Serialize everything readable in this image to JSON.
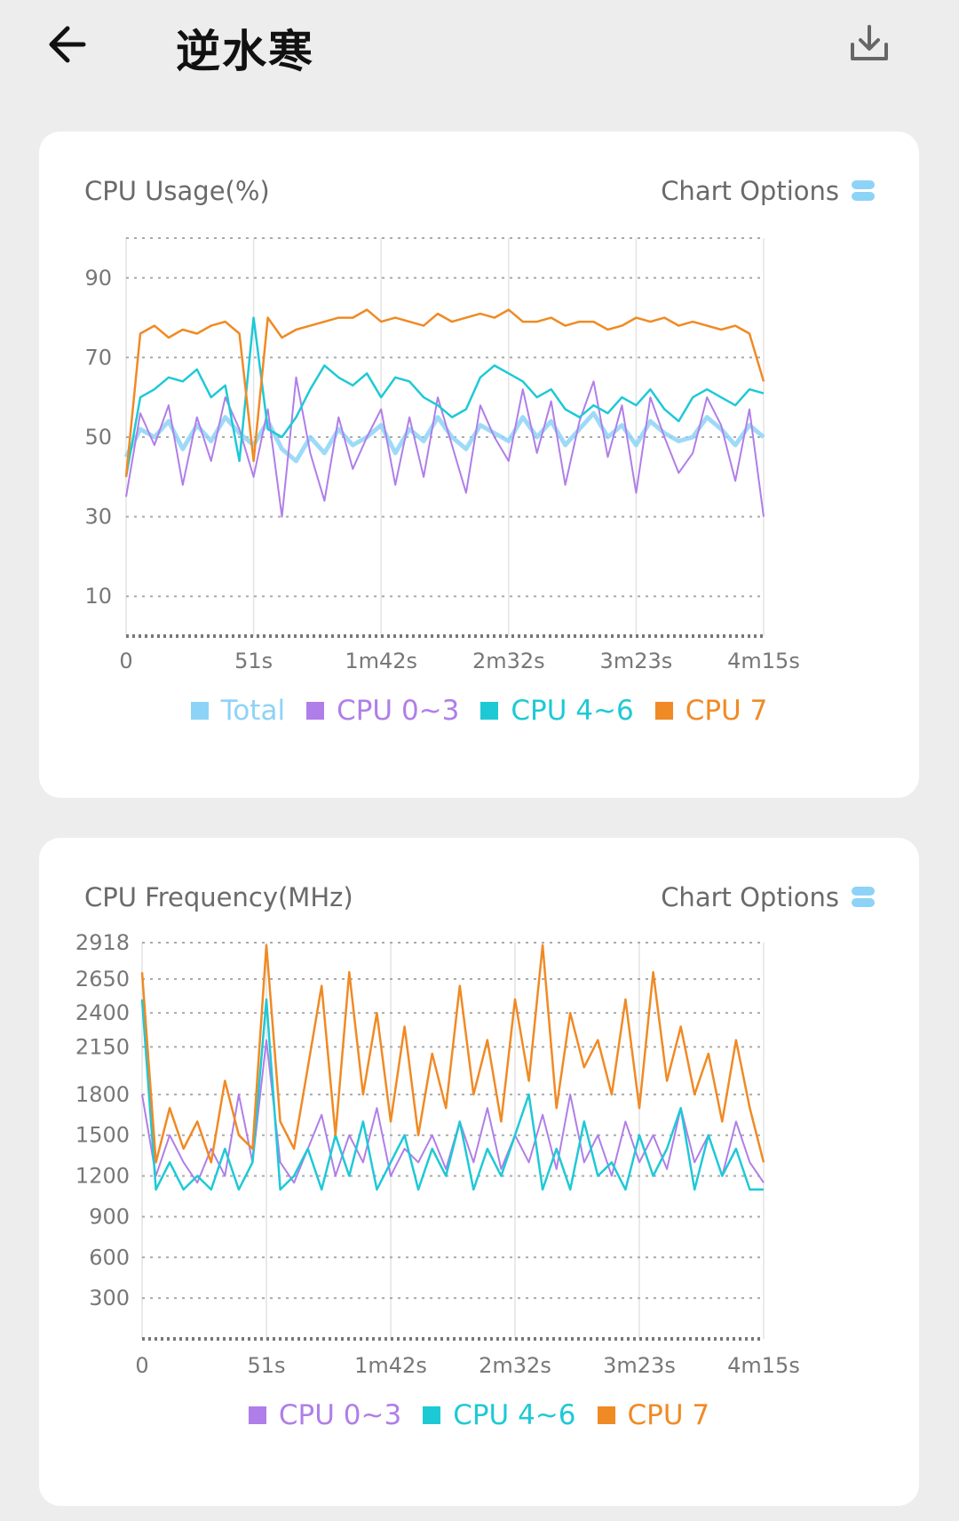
{
  "header": {
    "title": "逆水寒",
    "back_icon": "arrow-left-icon",
    "download_icon": "download-icon"
  },
  "colors": {
    "total": "#8dd3f7",
    "cpu03": "#b07ee8",
    "cpu46": "#1ec9d6",
    "cpu7": "#f08a24"
  },
  "usage_card": {
    "title": "CPU Usage(%)",
    "options_label": "Chart Options",
    "legend": [
      {
        "label": "Total",
        "series": "total"
      },
      {
        "label": "CPU 0~3",
        "series": "cpu03"
      },
      {
        "label": "CPU 4~6",
        "series": "cpu46"
      },
      {
        "label": "CPU 7",
        "series": "cpu7"
      }
    ]
  },
  "freq_card": {
    "title": "CPU Frequency(MHz)",
    "options_label": "Chart Options",
    "legend": [
      {
        "label": "CPU 0~3",
        "series": "cpu03"
      },
      {
        "label": "CPU 4~6",
        "series": "cpu46"
      },
      {
        "label": "CPU 7",
        "series": "cpu7"
      }
    ]
  },
  "chart_data": [
    {
      "type": "line",
      "title": "CPU Usage(%)",
      "xlabel": "",
      "ylabel": "",
      "x_ticks": [
        "0",
        "51s",
        "1m42s",
        "2m32s",
        "3m23s",
        "4m15s"
      ],
      "x_range_seconds": [
        0,
        255
      ],
      "y_ticks": [
        10,
        30,
        50,
        70,
        90
      ],
      "ylim": [
        0,
        100
      ],
      "series": [
        {
          "name": "Total",
          "key": "total",
          "values": [
            45,
            52,
            50,
            54,
            47,
            53,
            49,
            55,
            51,
            48,
            54,
            47,
            44,
            50,
            46,
            52,
            48,
            50,
            53,
            46,
            52,
            49,
            55,
            50,
            47,
            53,
            51,
            49,
            55,
            50,
            54,
            48,
            52,
            56,
            50,
            53,
            48,
            54,
            51,
            49,
            50,
            55,
            52,
            48,
            53,
            50
          ]
        },
        {
          "name": "CPU 0~3",
          "key": "cpu03",
          "values": [
            35,
            56,
            48,
            58,
            38,
            55,
            44,
            60,
            52,
            40,
            57,
            30,
            65,
            46,
            34,
            55,
            42,
            50,
            57,
            38,
            55,
            40,
            60,
            48,
            36,
            58,
            50,
            44,
            62,
            46,
            59,
            38,
            54,
            64,
            45,
            58,
            36,
            60,
            50,
            41,
            46,
            60,
            53,
            39,
            57,
            30
          ]
        },
        {
          "name": "CPU 4~6",
          "key": "cpu46",
          "values": [
            40,
            60,
            62,
            65,
            64,
            67,
            60,
            63,
            44,
            80,
            52,
            50,
            55,
            62,
            68,
            65,
            63,
            66,
            60,
            65,
            64,
            60,
            58,
            55,
            57,
            65,
            68,
            66,
            64,
            60,
            62,
            57,
            55,
            58,
            56,
            60,
            58,
            62,
            57,
            54,
            60,
            62,
            60,
            58,
            62,
            61
          ]
        },
        {
          "name": "CPU 7",
          "key": "cpu7",
          "values": [
            40,
            76,
            78,
            75,
            77,
            76,
            78,
            79,
            76,
            44,
            80,
            75,
            77,
            78,
            79,
            80,
            80,
            82,
            79,
            80,
            79,
            78,
            81,
            79,
            80,
            81,
            80,
            82,
            79,
            79,
            80,
            78,
            79,
            79,
            77,
            78,
            80,
            79,
            80,
            78,
            79,
            78,
            77,
            78,
            76,
            64
          ]
        }
      ]
    },
    {
      "type": "line",
      "title": "CPU Frequency(MHz)",
      "xlabel": "",
      "ylabel": "",
      "x_ticks": [
        "0",
        "51s",
        "1m42s",
        "2m32s",
        "3m23s",
        "4m15s"
      ],
      "x_range_seconds": [
        0,
        255
      ],
      "y_ticks": [
        300,
        600,
        900,
        1200,
        1500,
        1800,
        2150,
        2400,
        2650,
        2918
      ],
      "ylim": [
        0,
        2918
      ],
      "series": [
        {
          "name": "CPU 0~3",
          "key": "cpu03",
          "values": [
            1800,
            1200,
            1500,
            1300,
            1150,
            1400,
            1200,
            1800,
            1300,
            2200,
            1300,
            1150,
            1400,
            1650,
            1200,
            1500,
            1300,
            1700,
            1200,
            1400,
            1300,
            1500,
            1250,
            1600,
            1300,
            1700,
            1250,
            1500,
            1300,
            1650,
            1250,
            1800,
            1300,
            1500,
            1200,
            1600,
            1300,
            1500,
            1250,
            1700,
            1300,
            1500,
            1200,
            1600,
            1300,
            1150
          ]
        },
        {
          "name": "CPU 4~6",
          "key": "cpu46",
          "values": [
            2500,
            1100,
            1300,
            1100,
            1200,
            1100,
            1400,
            1100,
            1300,
            2500,
            1100,
            1200,
            1400,
            1100,
            1500,
            1200,
            1600,
            1100,
            1300,
            1500,
            1100,
            1400,
            1200,
            1600,
            1100,
            1400,
            1200,
            1500,
            1800,
            1100,
            1400,
            1100,
            1600,
            1200,
            1300,
            1100,
            1500,
            1200,
            1400,
            1700,
            1100,
            1500,
            1200,
            1400,
            1100,
            1100
          ]
        },
        {
          "name": "CPU 7",
          "key": "cpu7",
          "values": [
            2700,
            1300,
            1700,
            1400,
            1600,
            1300,
            1900,
            1500,
            1400,
            2900,
            1600,
            1400,
            2000,
            2600,
            1500,
            2700,
            1800,
            2400,
            1600,
            2300,
            1500,
            2100,
            1700,
            2600,
            1800,
            2200,
            1600,
            2500,
            1900,
            2900,
            1700,
            2400,
            2000,
            2200,
            1800,
            2500,
            1700,
            2700,
            1900,
            2300,
            1800,
            2100,
            1600,
            2200,
            1700,
            1300
          ]
        }
      ]
    }
  ]
}
